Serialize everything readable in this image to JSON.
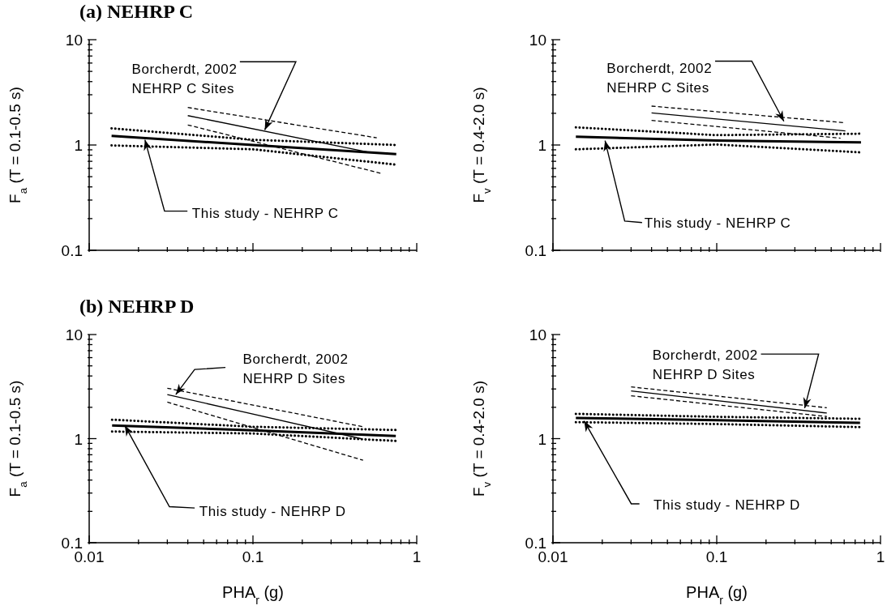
{
  "chart_data": [
    {
      "type": "line",
      "title": "(a) NEHRP C",
      "ylabel": "F$_{a}$ (T = 0.1-0.5 s)",
      "log": "xy",
      "tick_labels": "y",
      "xlim": [
        0.01,
        1
      ],
      "ylim": [
        0.1,
        10
      ],
      "xticks": [
        0.01,
        {
          "value": 0.02,
          "label": null
        },
        {
          "value": 0.03,
          "label": null
        },
        {
          "value": 0.04,
          "label": null
        },
        {
          "value": 0.05,
          "label": null
        },
        {
          "value": 0.06,
          "label": null
        },
        {
          "value": 0.07,
          "label": null
        },
        {
          "value": 0.08,
          "label": null
        },
        {
          "value": 0.09,
          "label": null
        },
        0.1,
        {
          "value": 0.2,
          "label": null
        },
        {
          "value": 0.3,
          "label": null
        },
        {
          "value": 0.4,
          "label": null
        },
        {
          "value": 0.5,
          "label": null
        },
        {
          "value": 0.6,
          "label": null
        },
        {
          "value": 0.7,
          "label": null
        },
        {
          "value": 0.8,
          "label": null
        },
        {
          "value": 0.9,
          "label": null
        },
        1
      ],
      "yticks": [
        0.1,
        {
          "value": 0.2,
          "label": null
        },
        {
          "value": 0.3,
          "label": null
        },
        {
          "value": 0.4,
          "label": null
        },
        {
          "value": 0.5,
          "label": null
        },
        {
          "value": 0.6,
          "label": null
        },
        {
          "value": 0.7,
          "label": null
        },
        {
          "value": 0.8,
          "label": null
        },
        {
          "value": 0.9,
          "label": null
        },
        1,
        {
          "value": 2,
          "label": null
        },
        {
          "value": 3,
          "label": null
        },
        {
          "value": 4,
          "label": null
        },
        {
          "value": 5,
          "label": null
        },
        {
          "value": 6,
          "label": null
        },
        {
          "value": 7,
          "label": null
        },
        {
          "value": 8,
          "label": null
        },
        {
          "value": 9,
          "label": null
        },
        10
      ],
      "series": [
        {
          "color": "#000000",
          "line_style": "solid",
          "x": [
            0.0137,
            0.1,
            0.75
          ],
          "values": [
            1.22,
            1.0,
            0.82
          ]
        },
        {
          "color": "#000000",
          "line_style": "dotted",
          "x": [
            0.0137,
            0.1,
            0.75
          ],
          "values": [
            1.44,
            1.12,
            1.0
          ]
        },
        {
          "color": "#000000",
          "line_style": "dotted",
          "x": [
            0.0137,
            0.1,
            0.75
          ],
          "values": [
            0.99,
            0.91,
            0.65
          ]
        },
        {
          "color": "#000000",
          "line_style": "solid",
          "x": [
            0.04,
            0.5
          ],
          "values": [
            1.9,
            0.86
          ]
        },
        {
          "color": "#000000",
          "line_style": "dashed",
          "x": [
            0.04,
            0.57
          ],
          "values": [
            2.27,
            1.17
          ]
        },
        {
          "color": "#000000",
          "line_style": "dashed",
          "x": [
            0.04,
            0.6
          ],
          "values": [
            1.55,
            0.54
          ]
        }
      ],
      "annotations": [
        {
          "text": "Borcherdt, 2002\nNEHRP C Sites",
          "x": 0.118,
          "y": 1.39
        },
        {
          "text": "This study - NEHRP C",
          "x": 0.0219,
          "y": 1.12
        }
      ]
    },
    {
      "type": "line",
      "ylabel": "F$_{v}$ (T = 0.4-2.0 s)",
      "log": "xy",
      "tick_labels": "y",
      "xlim": [
        0.01,
        1
      ],
      "ylim": [
        0.1,
        10
      ],
      "xticks": [
        0.01,
        {
          "value": 0.02,
          "label": null
        },
        {
          "value": 0.03,
          "label": null
        },
        {
          "value": 0.04,
          "label": null
        },
        {
          "value": 0.05,
          "label": null
        },
        {
          "value": 0.06,
          "label": null
        },
        {
          "value": 0.07,
          "label": null
        },
        {
          "value": 0.08,
          "label": null
        },
        {
          "value": 0.09,
          "label": null
        },
        0.1,
        {
          "value": 0.2,
          "label": null
        },
        {
          "value": 0.3,
          "label": null
        },
        {
          "value": 0.4,
          "label": null
        },
        {
          "value": 0.5,
          "label": null
        },
        {
          "value": 0.6,
          "label": null
        },
        {
          "value": 0.7,
          "label": null
        },
        {
          "value": 0.8,
          "label": null
        },
        {
          "value": 0.9,
          "label": null
        },
        1
      ],
      "yticks": [
        0.1,
        {
          "value": 0.2,
          "label": null
        },
        {
          "value": 0.3,
          "label": null
        },
        {
          "value": 0.4,
          "label": null
        },
        {
          "value": 0.5,
          "label": null
        },
        {
          "value": 0.6,
          "label": null
        },
        {
          "value": 0.7,
          "label": null
        },
        {
          "value": 0.8,
          "label": null
        },
        {
          "value": 0.9,
          "label": null
        },
        1,
        {
          "value": 2,
          "label": null
        },
        {
          "value": 3,
          "label": null
        },
        {
          "value": 4,
          "label": null
        },
        {
          "value": 5,
          "label": null
        },
        {
          "value": 6,
          "label": null
        },
        {
          "value": 7,
          "label": null
        },
        {
          "value": 8,
          "label": null
        },
        {
          "value": 9,
          "label": null
        },
        10
      ],
      "series": [
        {
          "color": "#000000",
          "line_style": "solid",
          "x": [
            0.0138,
            0.1,
            0.76
          ],
          "values": [
            1.2,
            1.1,
            1.06
          ]
        },
        {
          "color": "#000000",
          "line_style": "dotted",
          "x": [
            0.0138,
            0.1,
            0.76
          ],
          "values": [
            1.47,
            1.24,
            1.28
          ]
        },
        {
          "color": "#000000",
          "line_style": "dotted",
          "x": [
            0.0138,
            0.1,
            0.76
          ],
          "values": [
            0.91,
            1.01,
            0.85
          ]
        },
        {
          "color": "#000000",
          "line_style": "solid",
          "x": [
            0.04,
            0.61
          ],
          "values": [
            2.02,
            1.36
          ]
        },
        {
          "color": "#000000",
          "line_style": "dashed",
          "x": [
            0.04,
            0.6
          ],
          "values": [
            2.34,
            1.63
          ]
        },
        {
          "color": "#000000",
          "line_style": "dashed",
          "x": [
            0.04,
            0.57
          ],
          "values": [
            1.71,
            1.16
          ]
        }
      ],
      "annotations": [
        {
          "text": "Borcherdt, 2002\nNEHRP C Sites",
          "x": 0.257,
          "y": 1.68
        },
        {
          "text": "This study - NEHRP C",
          "x": 0.0208,
          "y": 1.1
        }
      ]
    },
    {
      "type": "line",
      "title": "(b) NEHRP D",
      "xlabel": "PHA$_{r}$ (g)",
      "ylabel": "F$_{a}$ (T = 0.1-0.5 s)",
      "log": "xy",
      "xlim": [
        0.01,
        1
      ],
      "ylim": [
        0.1,
        10
      ],
      "xticks": [
        0.01,
        {
          "value": 0.02,
          "label": null
        },
        {
          "value": 0.03,
          "label": null
        },
        {
          "value": 0.04,
          "label": null
        },
        {
          "value": 0.05,
          "label": null
        },
        {
          "value": 0.06,
          "label": null
        },
        {
          "value": 0.07,
          "label": null
        },
        {
          "value": 0.08,
          "label": null
        },
        {
          "value": 0.09,
          "label": null
        },
        0.1,
        {
          "value": 0.2,
          "label": null
        },
        {
          "value": 0.3,
          "label": null
        },
        {
          "value": 0.4,
          "label": null
        },
        {
          "value": 0.5,
          "label": null
        },
        {
          "value": 0.6,
          "label": null
        },
        {
          "value": 0.7,
          "label": null
        },
        {
          "value": 0.8,
          "label": null
        },
        {
          "value": 0.9,
          "label": null
        },
        1
      ],
      "yticks": [
        0.1,
        {
          "value": 0.2,
          "label": null
        },
        {
          "value": 0.3,
          "label": null
        },
        {
          "value": 0.4,
          "label": null
        },
        {
          "value": 0.5,
          "label": null
        },
        {
          "value": 0.6,
          "label": null
        },
        {
          "value": 0.7,
          "label": null
        },
        {
          "value": 0.8,
          "label": null
        },
        {
          "value": 0.9,
          "label": null
        },
        1,
        {
          "value": 2,
          "label": null
        },
        {
          "value": 3,
          "label": null
        },
        {
          "value": 4,
          "label": null
        },
        {
          "value": 5,
          "label": null
        },
        {
          "value": 6,
          "label": null
        },
        {
          "value": 7,
          "label": null
        },
        {
          "value": 8,
          "label": null
        },
        {
          "value": 9,
          "label": null
        },
        10
      ],
      "series": [
        {
          "color": "#000000",
          "line_style": "solid",
          "x": [
            0.0138,
            0.1,
            0.745
          ],
          "values": [
            1.34,
            1.2,
            1.06
          ]
        },
        {
          "color": "#000000",
          "line_style": "dotted",
          "x": [
            0.0138,
            0.1,
            0.745
          ],
          "values": [
            1.52,
            1.3,
            1.21
          ]
        },
        {
          "color": "#000000",
          "line_style": "dotted",
          "x": [
            0.0138,
            0.1,
            0.745
          ],
          "values": [
            1.17,
            1.12,
            0.95
          ]
        },
        {
          "color": "#000000",
          "line_style": "solid",
          "x": [
            0.03,
            0.456
          ],
          "values": [
            2.65,
            1.0
          ]
        },
        {
          "color": "#000000",
          "line_style": "dashed",
          "x": [
            0.03,
            0.47
          ],
          "values": [
            3.05,
            1.3
          ]
        },
        {
          "color": "#000000",
          "line_style": "dashed",
          "x": [
            0.03,
            0.47
          ],
          "values": [
            2.24,
            0.62
          ]
        }
      ],
      "annotations": [
        {
          "text": "Borcherdt, 2002\nNEHRP D Sites",
          "x": 0.0338,
          "y": 2.65
        },
        {
          "text": "This study - NEHRP D",
          "x": 0.0165,
          "y": 1.34
        }
      ]
    },
    {
      "type": "line",
      "xlabel": "PHA$_{r}$ (g)",
      "ylabel": "F$_{v}$ (T = 0.4-2.0 s)",
      "log": "xy",
      "xlim": [
        0.01,
        1
      ],
      "ylim": [
        0.1,
        10
      ],
      "xticks": [
        0.01,
        {
          "value": 0.02,
          "label": null
        },
        {
          "value": 0.03,
          "label": null
        },
        {
          "value": 0.04,
          "label": null
        },
        {
          "value": 0.05,
          "label": null
        },
        {
          "value": 0.06,
          "label": null
        },
        {
          "value": 0.07,
          "label": null
        },
        {
          "value": 0.08,
          "label": null
        },
        {
          "value": 0.09,
          "label": null
        },
        0.1,
        {
          "value": 0.2,
          "label": null
        },
        {
          "value": 0.3,
          "label": null
        },
        {
          "value": 0.4,
          "label": null
        },
        {
          "value": 0.5,
          "label": null
        },
        {
          "value": 0.6,
          "label": null
        },
        {
          "value": 0.7,
          "label": null
        },
        {
          "value": 0.8,
          "label": null
        },
        {
          "value": 0.9,
          "label": null
        },
        1
      ],
      "yticks": [
        0.1,
        {
          "value": 0.2,
          "label": null
        },
        {
          "value": 0.3,
          "label": null
        },
        {
          "value": 0.4,
          "label": null
        },
        {
          "value": 0.5,
          "label": null
        },
        {
          "value": 0.6,
          "label": null
        },
        {
          "value": 0.7,
          "label": null
        },
        {
          "value": 0.8,
          "label": null
        },
        {
          "value": 0.9,
          "label": null
        },
        1,
        {
          "value": 2,
          "label": null
        },
        {
          "value": 3,
          "label": null
        },
        {
          "value": 4,
          "label": null
        },
        {
          "value": 5,
          "label": null
        },
        {
          "value": 6,
          "label": null
        },
        {
          "value": 7,
          "label": null
        },
        {
          "value": 8,
          "label": null
        },
        {
          "value": 9,
          "label": null
        },
        10
      ],
      "series": [
        {
          "color": "#000000",
          "line_style": "solid",
          "x": [
            0.0138,
            0.1,
            0.75
          ],
          "values": [
            1.58,
            1.5,
            1.42
          ]
        },
        {
          "color": "#000000",
          "line_style": "dotted",
          "x": [
            0.0138,
            0.1,
            0.75
          ],
          "values": [
            1.73,
            1.62,
            1.55
          ]
        },
        {
          "color": "#000000",
          "line_style": "dotted",
          "x": [
            0.0138,
            0.1,
            0.75
          ],
          "values": [
            1.44,
            1.38,
            1.29
          ]
        },
        {
          "color": "#000000",
          "line_style": "solid",
          "x": [
            0.03,
            0.47
          ],
          "values": [
            2.87,
            1.76
          ]
        },
        {
          "color": "#000000",
          "line_style": "dashed",
          "x": [
            0.03,
            0.47
          ],
          "values": [
            3.14,
            1.98
          ]
        },
        {
          "color": "#000000",
          "line_style": "dashed",
          "x": [
            0.03,
            0.47
          ],
          "values": [
            2.58,
            1.63
          ]
        }
      ],
      "annotations": [
        {
          "text": "Borcherdt, 2002\nNEHRP D Sites",
          "x": 0.344,
          "y": 1.96
        },
        {
          "text": "This study - NEHRP D",
          "x": 0.0155,
          "y": 1.48
        }
      ]
    }
  ]
}
